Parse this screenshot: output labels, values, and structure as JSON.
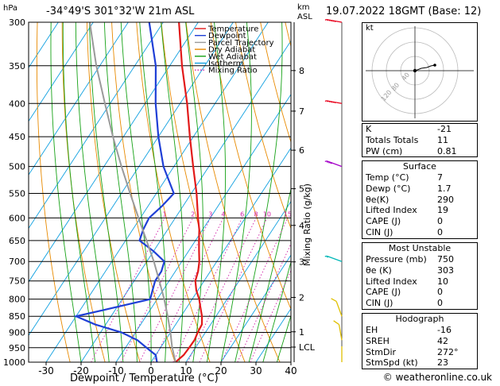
{
  "header": {
    "station": "-34°49'S 301°32'W 21m ASL",
    "datetime": "19.07.2022 18GMT (Base: 12)",
    "unit_hpa": "hPa",
    "unit_km": "km",
    "unit_asl": "ASL"
  },
  "chart_data": {
    "type": "line",
    "title": "",
    "xlabel": "Dewpoint / Temperature (°C)",
    "ylabel": "hPa",
    "ylabel_right": "Mixing Ratio (g/kg)",
    "xlim": [
      -35,
      40
    ],
    "ylim_hpa": [
      1000,
      300
    ],
    "x_ticks": [
      -30,
      -20,
      -10,
      0,
      10,
      20,
      30,
      40
    ],
    "pressure_levels": [
      300,
      350,
      400,
      450,
      500,
      550,
      600,
      650,
      700,
      750,
      800,
      850,
      900,
      950,
      1000
    ],
    "km_ticks": [
      {
        "label": "8",
        "p": 356
      },
      {
        "label": "7",
        "p": 411
      },
      {
        "label": "6",
        "p": 472
      },
      {
        "label": "5",
        "p": 541
      },
      {
        "label": "4",
        "p": 616
      },
      {
        "label": "3",
        "p": 701
      },
      {
        "label": "2",
        "p": 795
      },
      {
        "label": "1",
        "p": 898
      },
      {
        "label": "LCL",
        "p": 948
      }
    ],
    "mixing_ratio_labels": [
      "1",
      "2",
      "3",
      "4",
      "6",
      "8",
      "10",
      "15",
      "20",
      "25"
    ],
    "mixing_ratio_values": [
      1,
      2,
      3,
      4,
      6,
      8,
      10,
      15,
      20,
      25
    ],
    "legend": {
      "placement": "top-left",
      "items": [
        {
          "name": "Temperature",
          "color": "#e21a1a",
          "style": "solid"
        },
        {
          "name": "Dewpoint",
          "color": "#1f3fd6",
          "style": "solid"
        },
        {
          "name": "Parcel Trajectory",
          "color": "#9a9a9a",
          "style": "solid"
        },
        {
          "name": "Dry Adiabat",
          "color": "#e88a00",
          "style": "solid"
        },
        {
          "name": "Wet Adiabat",
          "color": "#16a216",
          "style": "solid"
        },
        {
          "name": "Isotherm",
          "color": "#10a0e0",
          "style": "solid"
        },
        {
          "name": "Mixing Ratio",
          "color": "#d21ea8",
          "style": "dotted"
        }
      ]
    },
    "series": [
      {
        "name": "Temperature",
        "color": "#e21a1a",
        "points": [
          [
            1000,
            7
          ],
          [
            975,
            8
          ],
          [
            950,
            8.2
          ],
          [
            925,
            8.3
          ],
          [
            900,
            7.8
          ],
          [
            875,
            7.5
          ],
          [
            850,
            6
          ],
          [
            825,
            4
          ],
          [
            800,
            2
          ],
          [
            775,
            -0.5
          ],
          [
            750,
            -2.5
          ],
          [
            725,
            -3.5
          ],
          [
            700,
            -5
          ],
          [
            675,
            -7
          ],
          [
            650,
            -9
          ],
          [
            625,
            -11
          ],
          [
            600,
            -13.5
          ],
          [
            550,
            -18.5
          ],
          [
            500,
            -24.5
          ],
          [
            450,
            -31
          ],
          [
            400,
            -38
          ],
          [
            350,
            -46.5
          ],
          [
            300,
            -55.5
          ]
        ]
      },
      {
        "name": "Dewpoint",
        "color": "#1f3fd6",
        "points": [
          [
            1000,
            1.7
          ],
          [
            975,
            0
          ],
          [
            950,
            -4
          ],
          [
            925,
            -8
          ],
          [
            900,
            -14
          ],
          [
            875,
            -23
          ],
          [
            850,
            -30
          ],
          [
            825,
            -21
          ],
          [
            800,
            -12
          ],
          [
            775,
            -13
          ],
          [
            750,
            -14
          ],
          [
            725,
            -14
          ],
          [
            700,
            -15
          ],
          [
            675,
            -20
          ],
          [
            650,
            -26
          ],
          [
            625,
            -27
          ],
          [
            600,
            -27.5
          ],
          [
            575,
            -26
          ],
          [
            550,
            -25
          ],
          [
            500,
            -33
          ],
          [
            450,
            -40
          ],
          [
            400,
            -47
          ],
          [
            350,
            -54
          ],
          [
            300,
            -64
          ]
        ]
      },
      {
        "name": "Parcel Trajectory",
        "color": "#9a9a9a",
        "points": [
          [
            1000,
            7
          ],
          [
            948,
            3.2
          ],
          [
            900,
            0
          ],
          [
            850,
            -3.8
          ],
          [
            800,
            -8
          ],
          [
            750,
            -12.8
          ],
          [
            700,
            -18
          ],
          [
            650,
            -24
          ],
          [
            600,
            -30.5
          ],
          [
            550,
            -37.5
          ],
          [
            500,
            -45
          ],
          [
            450,
            -53
          ],
          [
            400,
            -61.5
          ],
          [
            350,
            -71
          ],
          [
            300,
            -81
          ]
        ]
      }
    ],
    "wind_barbs": [
      {
        "p": 300,
        "color": "#e8001c",
        "dir": 280,
        "spd": 90
      },
      {
        "p": 400,
        "color": "#e8001c",
        "dir": 280,
        "spd": 75
      },
      {
        "p": 500,
        "color": "#a400c8",
        "dir": 290,
        "spd": 45
      },
      {
        "p": 700,
        "color": "#00b8b8",
        "dir": 290,
        "spd": 25
      },
      {
        "p": 850,
        "color": "#e0c000",
        "dir": 340,
        "spd": 10
      },
      {
        "p": 925,
        "color": "#e0c000",
        "dir": 350,
        "spd": 10
      },
      {
        "p": 1000,
        "color": "#e0c000",
        "dir": 0,
        "spd": 5
      }
    ],
    "hodograph": {
      "unit": "kt",
      "rings": [
        "40",
        "80",
        "120"
      ],
      "trace": [
        [
          0,
          0
        ],
        [
          3,
          1
        ],
        [
          8,
          3
        ],
        [
          15,
          4
        ],
        [
          20,
          6
        ],
        [
          25,
          7
        ]
      ]
    }
  },
  "indices": {
    "rows": [
      {
        "label": "K",
        "value": "-21"
      },
      {
        "label": "Totals Totals",
        "value": "11"
      },
      {
        "label": "PW (cm)",
        "value": "0.81"
      }
    ]
  },
  "surface": {
    "title": "Surface",
    "rows": [
      {
        "label": "Temp (°C)",
        "value": "7"
      },
      {
        "label": "Dewp (°C)",
        "value": "1.7"
      },
      {
        "label": "θe(K)",
        "value": "290"
      },
      {
        "label": "Lifted Index",
        "value": "19"
      },
      {
        "label": "CAPE (J)",
        "value": "0"
      },
      {
        "label": "CIN (J)",
        "value": "0"
      }
    ]
  },
  "most_unstable": {
    "title": "Most Unstable",
    "rows": [
      {
        "label": "Pressure (mb)",
        "value": "750"
      },
      {
        "label": "θe (K)",
        "value": "303"
      },
      {
        "label": "Lifted Index",
        "value": "10"
      },
      {
        "label": "CAPE (J)",
        "value": "0"
      },
      {
        "label": "CIN (J)",
        "value": "0"
      }
    ]
  },
  "hodograph_stats": {
    "title": "Hodograph",
    "rows": [
      {
        "label": "EH",
        "value": "-16"
      },
      {
        "label": "SREH",
        "value": "42"
      },
      {
        "label": "StmDir",
        "value": "272°"
      },
      {
        "label": "StmSpd (kt)",
        "value": "23"
      }
    ]
  },
  "footer": "© weatheronline.co.uk"
}
